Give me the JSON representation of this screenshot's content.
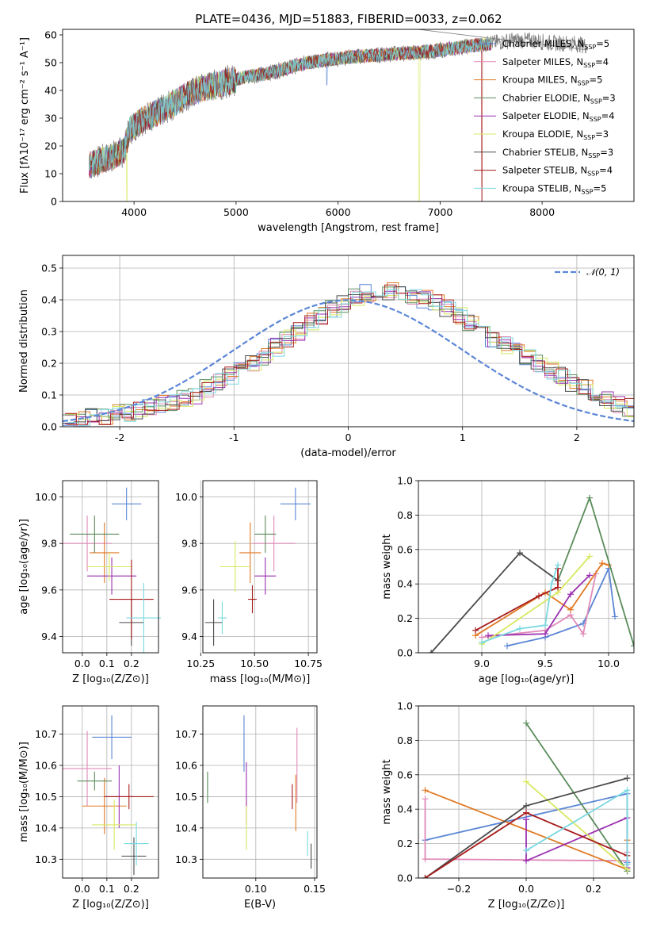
{
  "figure_title": "PLATE=0436, MJD=51883, FIBERID=0033, z=0.062",
  "colors": {
    "Chabrier MILES": "#5b86d6",
    "Salpeter MILES": "#e08ab8",
    "Kroupa MILES": "#e07a26",
    "Chabrier ELODIE": "#5a8c5a",
    "Salpeter ELODIE": "#9b30b0",
    "Kroupa ELODIE": "#d8e860",
    "Chabrier STELIB": "#4a4a4a",
    "Salpeter STELIB": "#a81c1c",
    "Kroupa STELIB": "#7ad8e0",
    "data": "#7f7f7f",
    "normal": "#5b86d6"
  },
  "chart_data": [
    {
      "id": "spectrum",
      "type": "line",
      "title": "PLATE=0436, MJD=51883, FIBERID=0033, z=0.062",
      "xlabel": "wavelength [Angstrom, rest frame]",
      "ylabel": "Flux [fλ10⁻¹⁷ erg cm⁻² s⁻¹ A⁻¹]",
      "xlim": [
        3300,
        8900
      ],
      "ylim": [
        0,
        62
      ],
      "xticks": [
        4000,
        5000,
        6000,
        7000,
        8000
      ],
      "yticks": [
        0,
        10,
        20,
        30,
        40,
        50,
        60
      ],
      "grid": false,
      "legend_position": "right",
      "continuum": [
        [
          3560,
          13
        ],
        [
          3700,
          15
        ],
        [
          3900,
          18
        ],
        [
          3960,
          26
        ],
        [
          4100,
          30
        ],
        [
          4300,
          33
        ],
        [
          4500,
          38
        ],
        [
          4700,
          41
        ],
        [
          4900,
          43
        ],
        [
          5100,
          45
        ],
        [
          5300,
          46
        ],
        [
          5500,
          48
        ],
        [
          5700,
          50
        ],
        [
          5900,
          51
        ],
        [
          6100,
          52
        ],
        [
          6300,
          52.5
        ],
        [
          6500,
          53
        ],
        [
          6700,
          53.5
        ],
        [
          6900,
          54
        ],
        [
          7100,
          55
        ],
        [
          7300,
          56
        ],
        [
          7500,
          57
        ],
        [
          7700,
          58
        ],
        [
          7900,
          58
        ],
        [
          8100,
          57
        ],
        [
          8300,
          57
        ],
        [
          8450,
          56
        ]
      ],
      "absorption_features": [
        [
          3930,
          0
        ],
        [
          5890,
          42
        ],
        [
          6795,
          0
        ],
        [
          7410,
          0
        ]
      ],
      "series": [
        {
          "name": "Chabrier MILES",
          "label_suffix": "=5"
        },
        {
          "name": "Salpeter MILES",
          "label_suffix": "=4"
        },
        {
          "name": "Kroupa MILES",
          "label_suffix": "=5"
        },
        {
          "name": "Chabrier ELODIE",
          "label_suffix": "=3"
        },
        {
          "name": "Salpeter ELODIE",
          "label_suffix": "=4"
        },
        {
          "name": "Kroupa ELODIE",
          "label_suffix": "=3"
        },
        {
          "name": "Chabrier STELIB",
          "label_suffix": "=3"
        },
        {
          "name": "Salpeter STELIB",
          "label_suffix": "=4"
        },
        {
          "name": "Kroupa STELIB",
          "label_suffix": "=5"
        }
      ],
      "legend_prefix": "N",
      "legend_sub": "SSP"
    },
    {
      "id": "residuals",
      "type": "bar",
      "xlabel": "(data-model)/error",
      "ylabel": "Normed distribution",
      "xlim": [
        -2.5,
        2.5
      ],
      "ylim": [
        0,
        0.54
      ],
      "xticks": [
        -2,
        -1,
        0,
        1,
        2
      ],
      "ytick_labels": [
        "0.0",
        "0.1",
        "0.2",
        "0.3",
        "0.4",
        "0.5"
      ],
      "yticks": [
        0,
        0.1,
        0.2,
        0.3,
        0.4,
        0.5
      ],
      "grid": true,
      "legend": "𝒩(0, 1)",
      "legend_position": "top-right",
      "bin_width": 0.1,
      "bin_start": -2.5,
      "base_distribution": [
        0.02,
        0.025,
        0.03,
        0.035,
        0.04,
        0.045,
        0.05,
        0.06,
        0.07,
        0.08,
        0.09,
        0.1,
        0.12,
        0.14,
        0.16,
        0.18,
        0.2,
        0.22,
        0.25,
        0.28,
        0.3,
        0.33,
        0.35,
        0.37,
        0.39,
        0.41,
        0.42,
        0.43,
        0.43,
        0.42,
        0.41,
        0.4,
        0.39,
        0.37,
        0.35,
        0.33,
        0.31,
        0.28,
        0.26,
        0.24,
        0.22,
        0.2,
        0.18,
        0.16,
        0.14,
        0.12,
        0.1,
        0.085,
        0.07,
        0.06,
        0.05
      ]
    },
    {
      "id": "age-Z",
      "type": "scatter",
      "xlabel": "Z [log₁₀(Z/Z⊙)]",
      "ylabel": "age  [log₁₀(age/yr)]",
      "xlim": [
        -0.08,
        0.31
      ],
      "ylim": [
        9.33,
        10.07
      ],
      "xticks": [
        0.0,
        0.1,
        0.2
      ],
      "xtick_labels": [
        "0.0",
        "0.1",
        "0.2"
      ],
      "yticks": [
        9.4,
        9.6,
        9.8,
        10.0
      ],
      "ytick_labels": [
        "9.4",
        "9.6",
        "9.8",
        "10.0"
      ],
      "grid": true,
      "points": [
        {
          "series": "Chabrier MILES",
          "x": 0.18,
          "xerr": 0.06,
          "y": 9.97,
          "yerr": 0.07
        },
        {
          "series": "Salpeter MILES",
          "x": 0.02,
          "xerr": 0.1,
          "y": 9.8,
          "yerr": 0.12
        },
        {
          "series": "Kroupa MILES",
          "x": 0.09,
          "xerr": 0.06,
          "y": 9.76,
          "yerr": 0.13
        },
        {
          "series": "Chabrier ELODIE",
          "x": 0.05,
          "xerr": 0.1,
          "y": 9.84,
          "yerr": 0.08
        },
        {
          "series": "Salpeter ELODIE",
          "x": 0.12,
          "xerr": 0.1,
          "y": 9.66,
          "yerr": 0.08
        },
        {
          "series": "Kroupa ELODIE",
          "x": 0.11,
          "xerr": 0.09,
          "y": 9.7,
          "yerr": 0.06
        },
        {
          "series": "Chabrier STELIB",
          "x": 0.2,
          "xerr": 0.05,
          "y": 9.46,
          "yerr": 0.1
        },
        {
          "series": "Salpeter STELIB",
          "x": 0.2,
          "xerr": 0.09,
          "y": 9.56,
          "yerr": 0.17
        },
        {
          "series": "Kroupa STELIB",
          "x": 0.25,
          "xerr": 0.07,
          "y": 9.48,
          "yerr": 0.15
        }
      ]
    },
    {
      "id": "age-mass",
      "type": "scatter",
      "xlabel": "mass [log₁₀(M/M⊙)]",
      "ylabel": "",
      "xlim": [
        10.26,
        10.79
      ],
      "ylim": [
        9.33,
        10.07
      ],
      "xticks": [
        10.25,
        10.5,
        10.75
      ],
      "xtick_labels": [
        "10.25",
        "10.50",
        "10.75"
      ],
      "yticks": [
        9.4,
        9.6,
        9.8,
        10.0
      ],
      "ytick_labels": [
        "9.4",
        "9.6",
        "9.8",
        "10.0"
      ],
      "grid": true,
      "points": [
        {
          "series": "Chabrier MILES",
          "x": 10.69,
          "xerr": 0.07,
          "y": 9.97,
          "yerr": 0.07
        },
        {
          "series": "Salpeter MILES",
          "x": 10.59,
          "xerr": 0.1,
          "y": 9.8,
          "yerr": 0.12
        },
        {
          "series": "Kroupa MILES",
          "x": 10.48,
          "xerr": 0.05,
          "y": 9.76,
          "yerr": 0.13
        },
        {
          "series": "Chabrier ELODIE",
          "x": 10.55,
          "xerr": 0.05,
          "y": 9.84,
          "yerr": 0.08
        },
        {
          "series": "Salpeter ELODIE",
          "x": 10.55,
          "xerr": 0.05,
          "y": 9.66,
          "yerr": 0.08
        },
        {
          "series": "Kroupa ELODIE",
          "x": 10.41,
          "xerr": 0.07,
          "y": 9.7,
          "yerr": 0.11
        },
        {
          "series": "Chabrier STELIB",
          "x": 10.31,
          "xerr": 0.04,
          "y": 9.46,
          "yerr": 0.1
        },
        {
          "series": "Salpeter STELIB",
          "x": 10.49,
          "xerr": 0.02,
          "y": 9.56,
          "yerr": 0.06
        },
        {
          "series": "Kroupa STELIB",
          "x": 10.35,
          "xerr": 0.02,
          "y": 9.48,
          "yerr": 0.07
        }
      ]
    },
    {
      "id": "weight-age",
      "type": "line",
      "xlabel": "age  [log₁₀(age/yr)]",
      "ylabel": "mass weight",
      "xlim": [
        8.5,
        10.2
      ],
      "ylim": [
        0,
        1.0
      ],
      "xticks": [
        9.0,
        9.5,
        10.0
      ],
      "xtick_labels": [
        "9.0",
        "9.5",
        "10.0"
      ],
      "yticks": [
        0,
        0.2,
        0.4,
        0.6,
        0.8,
        1.0
      ],
      "ytick_labels": [
        "0.0",
        "0.2",
        "0.4",
        "0.6",
        "0.8",
        "1.0"
      ],
      "grid": true,
      "series": [
        {
          "name": "Chabrier MILES",
          "x": [
            9.2,
            9.5,
            9.8,
            10.0,
            10.05
          ],
          "y": [
            0.04,
            0.09,
            0.17,
            0.49,
            0.21
          ]
        },
        {
          "name": "Salpeter MILES",
          "x": [
            9.0,
            9.5,
            9.7,
            9.8,
            9.9
          ],
          "y": [
            0.09,
            0.13,
            0.22,
            0.11,
            0.46
          ]
        },
        {
          "name": "Kroupa MILES",
          "x": [
            8.95,
            9.5,
            9.7,
            9.95,
            10.0
          ],
          "y": [
            0.1,
            0.35,
            0.25,
            0.52,
            0.51
          ]
        },
        {
          "name": "Chabrier ELODIE",
          "x": [
            9.6,
            9.85,
            10.2
          ],
          "y": [
            0.42,
            0.9,
            0.04
          ]
        },
        {
          "name": "Salpeter ELODIE",
          "x": [
            9.05,
            9.5,
            9.7,
            9.85
          ],
          "y": [
            0.1,
            0.11,
            0.34,
            0.45
          ]
        },
        {
          "name": "Kroupa ELODIE",
          "x": [
            9.0,
            9.6,
            9.85
          ],
          "y": [
            0.05,
            0.35,
            0.56
          ]
        },
        {
          "name": "Chabrier STELIB",
          "x": [
            8.6,
            9.3,
            9.6
          ],
          "y": [
            0.0,
            0.58,
            0.42
          ]
        },
        {
          "name": "Salpeter STELIB",
          "x": [
            8.95,
            9.45,
            9.6,
            9.6
          ],
          "y": [
            0.13,
            0.33,
            0.38,
            0.49
          ]
        },
        {
          "name": "Kroupa STELIB",
          "x": [
            9.0,
            9.3,
            9.5,
            9.55,
            9.6
          ],
          "y": [
            0.06,
            0.14,
            0.16,
            0.4,
            0.51
          ]
        }
      ]
    },
    {
      "id": "mass-Z",
      "type": "scatter",
      "xlabel": "Z [log₁₀(Z/Z⊙)]",
      "ylabel": "mass [log₁₀(M/M⊙)]",
      "xlim": [
        -0.08,
        0.31
      ],
      "ylim": [
        10.24,
        10.79
      ],
      "xticks": [
        0.0,
        0.1,
        0.2
      ],
      "xtick_labels": [
        "0.0",
        "0.1",
        "0.2"
      ],
      "yticks": [
        10.3,
        10.4,
        10.5,
        10.6,
        10.7
      ],
      "ytick_labels": [
        "10.3",
        "10.4",
        "10.5",
        "10.6",
        "10.7"
      ],
      "grid": true,
      "points": [
        {
          "series": "Chabrier MILES",
          "x": 0.12,
          "xerr": 0.08,
          "y": 10.69,
          "yerr": 0.07
        },
        {
          "series": "Salpeter MILES",
          "x": 0.02,
          "xerr": 0.1,
          "y": 10.59,
          "yerr": 0.12
        },
        {
          "series": "Kroupa MILES",
          "x": 0.09,
          "xerr": 0.09,
          "y": 10.47,
          "yerr": 0.09
        },
        {
          "series": "Chabrier ELODIE",
          "x": 0.05,
          "xerr": 0.07,
          "y": 10.55,
          "yerr": 0.03
        },
        {
          "series": "Salpeter ELODIE",
          "x": 0.15,
          "xerr": 0.06,
          "y": 10.5,
          "yerr": 0.1
        },
        {
          "series": "Kroupa ELODIE",
          "x": 0.13,
          "xerr": 0.09,
          "y": 10.41,
          "yerr": 0.08
        },
        {
          "series": "Chabrier STELIB",
          "x": 0.21,
          "xerr": 0.05,
          "y": 10.31,
          "yerr": 0.06
        },
        {
          "series": "Salpeter STELIB",
          "x": 0.19,
          "xerr": 0.1,
          "y": 10.5,
          "yerr": 0.04
        },
        {
          "series": "Kroupa STELIB",
          "x": 0.22,
          "xerr": 0.05,
          "y": 10.35,
          "yerr": 0.07
        }
      ]
    },
    {
      "id": "mass-EBV",
      "type": "scatter",
      "xlabel": "E(B-V)",
      "ylabel": "",
      "xlim": [
        0.055,
        0.152
      ],
      "ylim": [
        10.24,
        10.79
      ],
      "xticks": [
        0.1,
        0.15
      ],
      "xtick_labels": [
        "0.10",
        "0.15"
      ],
      "yticks": [
        10.3,
        10.4,
        10.5,
        10.6,
        10.7
      ],
      "ytick_labels": [
        "10.3",
        "10.4",
        "10.5",
        "10.6",
        "10.7"
      ],
      "grid": true,
      "points": [
        {
          "series": "Chabrier MILES",
          "x": 0.09,
          "xerr": 0,
          "y": 10.67,
          "yerr": 0.09
        },
        {
          "series": "Salpeter MILES",
          "x": 0.135,
          "xerr": 0,
          "y": 10.6,
          "yerr": 0.12
        },
        {
          "series": "Kroupa MILES",
          "x": 0.134,
          "xerr": 0,
          "y": 10.48,
          "yerr": 0.09
        },
        {
          "series": "Chabrier ELODIE",
          "x": 0.059,
          "xerr": 0,
          "y": 10.53,
          "yerr": 0.05
        },
        {
          "series": "Salpeter ELODIE",
          "x": 0.092,
          "xerr": 0,
          "y": 10.51,
          "yerr": 0.1
        },
        {
          "series": "Kroupa ELODIE",
          "x": 0.092,
          "xerr": 0,
          "y": 10.4,
          "yerr": 0.07
        },
        {
          "series": "Chabrier STELIB",
          "x": 0.147,
          "xerr": 0,
          "y": 10.31,
          "yerr": 0.04
        },
        {
          "series": "Salpeter STELIB",
          "x": 0.131,
          "xerr": 0,
          "y": 10.5,
          "yerr": 0.04
        },
        {
          "series": "Kroupa STELIB",
          "x": 0.144,
          "xerr": 0,
          "y": 10.35,
          "yerr": 0.04
        }
      ]
    },
    {
      "id": "weight-Z",
      "type": "line",
      "xlabel": "Z [log₁₀(Z/Z⊙)]",
      "ylabel": "mass weight",
      "xlim": [
        -0.32,
        0.32
      ],
      "ylim": [
        0,
        1.0
      ],
      "xticks": [
        -0.2,
        0.0,
        0.2
      ],
      "xtick_labels": [
        "−0.2",
        "0.0",
        "0.2"
      ],
      "yticks": [
        0,
        0.2,
        0.4,
        0.6,
        0.8,
        1.0
      ],
      "ytick_labels": [
        "0.0",
        "0.2",
        "0.4",
        "0.6",
        "0.8",
        "1.0"
      ],
      "grid": true,
      "series": [
        {
          "name": "Chabrier MILES",
          "x": [
            -0.3,
            0.3,
            0.3
          ],
          "y": [
            0.22,
            0.49,
            0.09
          ]
        },
        {
          "name": "Salpeter MILES",
          "x": [
            -0.3,
            -0.3,
            0.3,
            0.3
          ],
          "y": [
            0.46,
            0.11,
            0.1,
            0.15
          ]
        },
        {
          "name": "Kroupa MILES",
          "x": [
            -0.3,
            0.3,
            0.3
          ],
          "y": [
            0.51,
            0.05,
            0.22
          ]
        },
        {
          "name": "Chabrier ELODIE",
          "x": [
            0.0,
            0.3
          ],
          "y": [
            0.9,
            0.04
          ]
        },
        {
          "name": "Salpeter ELODIE",
          "x": [
            0.0,
            0.0,
            0.3,
            0.3
          ],
          "y": [
            0.34,
            0.1,
            0.35,
            0.06
          ]
        },
        {
          "name": "Kroupa ELODIE",
          "x": [
            0.0,
            0.3
          ],
          "y": [
            0.56,
            0.05
          ]
        },
        {
          "name": "Chabrier STELIB",
          "x": [
            -0.3,
            0.0,
            0.3
          ],
          "y": [
            0.0,
            0.42,
            0.58
          ]
        },
        {
          "name": "Salpeter STELIB",
          "x": [
            -0.3,
            0.0,
            0.3
          ],
          "y": [
            0.0,
            0.38,
            0.13
          ]
        },
        {
          "name": "Kroupa STELIB",
          "x": [
            0.0,
            0.3,
            0.3
          ],
          "y": [
            0.16,
            0.51,
            0.08
          ]
        }
      ]
    }
  ]
}
